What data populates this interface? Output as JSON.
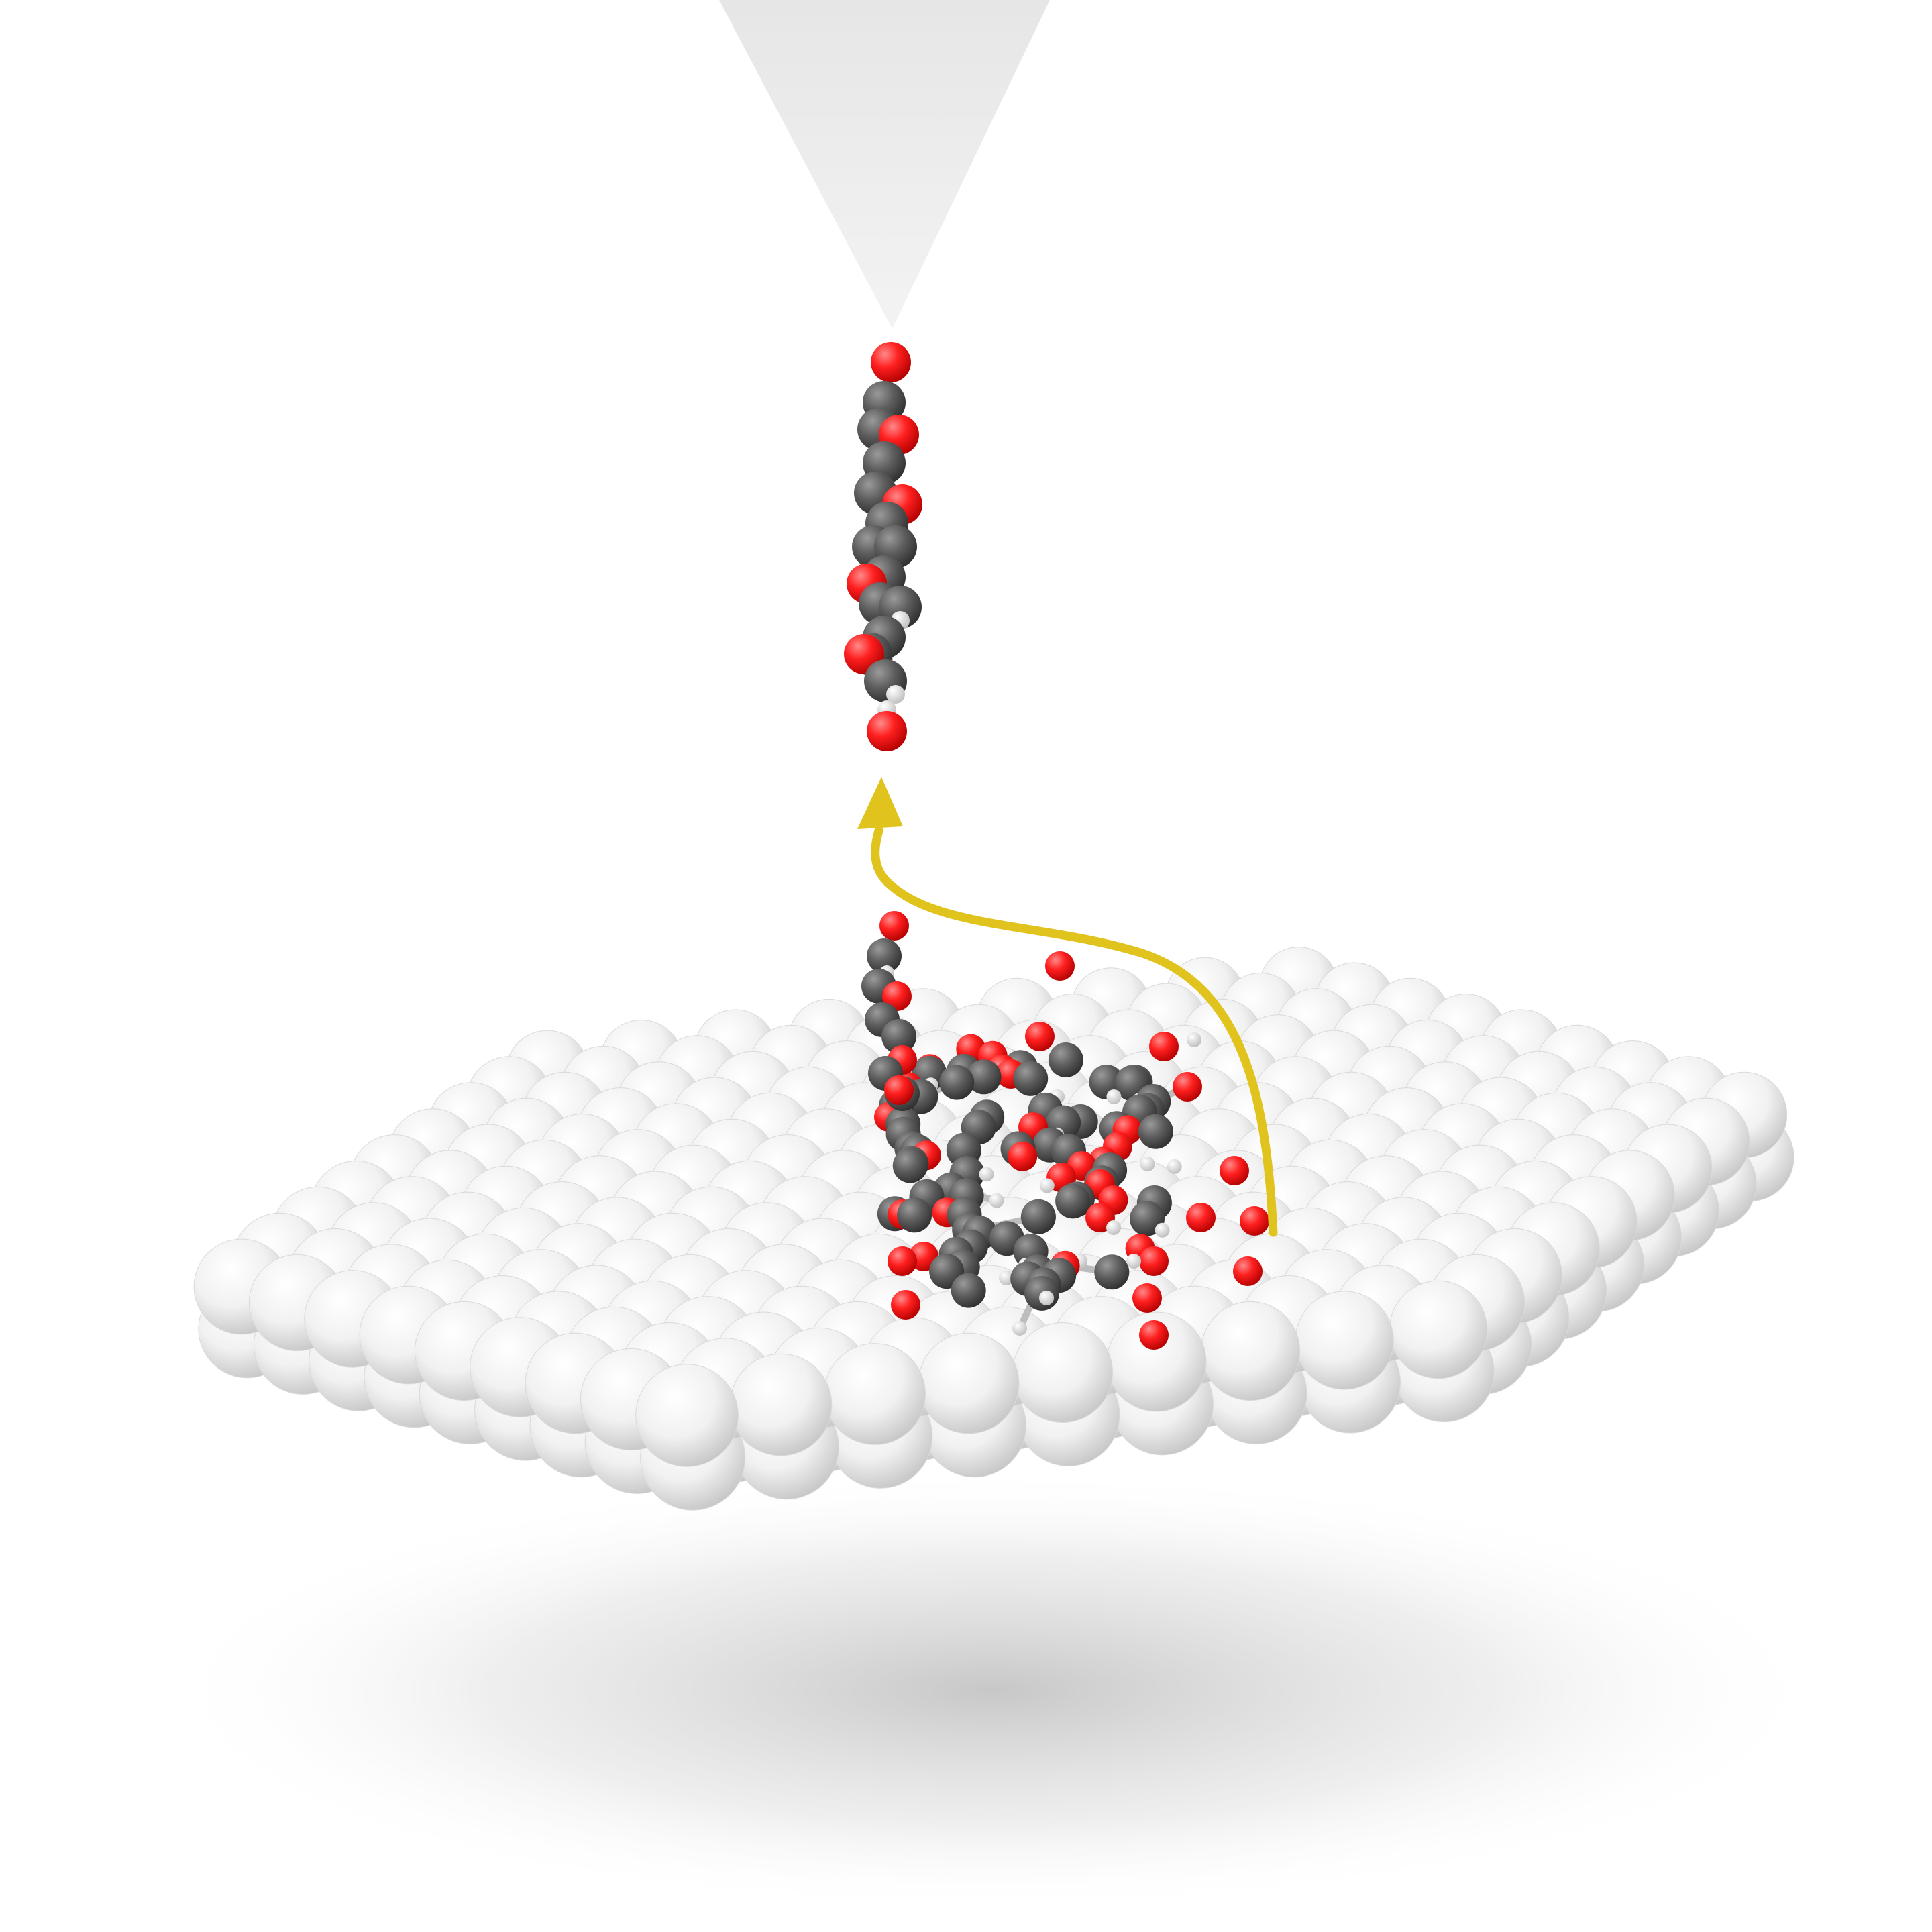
{
  "illustration": {
    "subject": "",
    "elements": [
      {
        "name": "probe-tip",
        "kind": "cone"
      },
      {
        "name": "lifted-molecule",
        "kind": "vertical molecular stack"
      },
      {
        "name": "lift-path-arrow",
        "kind": "curved arrow"
      },
      {
        "name": "adsorbed-molecules",
        "kind": "molecular cluster"
      },
      {
        "name": "metal-surface",
        "kind": "atomic lattice"
      }
    ]
  },
  "colors": {
    "background": "#ffffff",
    "tip": "#ebebeb",
    "surface_atom": "#f2f2f2",
    "surface_atom_shadow": "#c8c8c8",
    "carbon": "#5a5a5a",
    "oxygen": "#ff1a1a",
    "hydrogen": "#f4f4f4",
    "bond": "#bdbdbd",
    "arrow": "#e0c31c"
  }
}
